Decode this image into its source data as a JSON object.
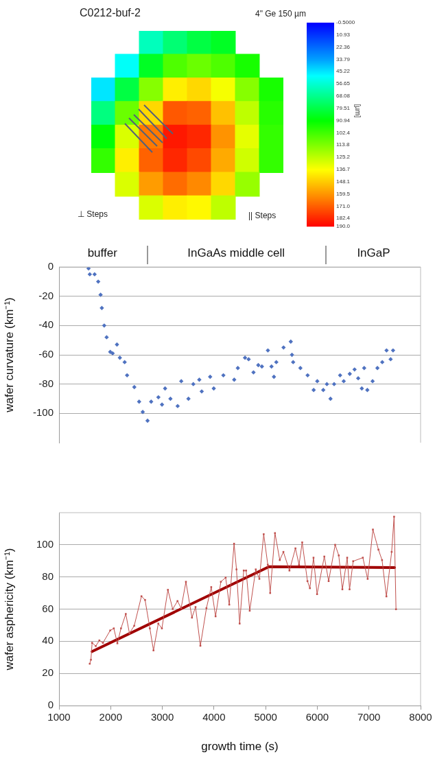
{
  "chart_data": [
    {
      "type": "heatmap",
      "title": "C0212-buf-2",
      "subtitle": "4\" Ge 150 µm",
      "clabel": "[µm]",
      "annotations": [
        "⊥ Steps",
        "|| Steps"
      ],
      "tick_labels": false,
      "categories": [
        null,
        null,
        null,
        null,
        null,
        null,
        null,
        null
      ],
      "y_categories": [
        null,
        null,
        null,
        null,
        null,
        null,
        null,
        null
      ],
      "cells": [
        [
          null,
          null,
          60,
          72,
          80,
          85,
          null,
          null
        ],
        [
          null,
          50,
          85,
          105,
          110,
          105,
          95,
          null
        ],
        [
          45,
          80,
          115,
          140,
          145,
          135,
          115,
          95
        ],
        [
          70,
          110,
          145,
          172,
          170,
          150,
          125,
          98
        ],
        [
          90,
          130,
          165,
          185,
          182,
          160,
          132,
          100
        ],
        [
          100,
          140,
          170,
          182,
          175,
          155,
          128,
          100
        ],
        [
          null,
          130,
          158,
          168,
          162,
          145,
          118,
          null
        ],
        [
          null,
          null,
          130,
          140,
          138,
          125,
          null,
          null
        ]
      ],
      "clim": [
        -0.5,
        190
      ],
      "cticks": [
        {
          "value": -0.5,
          "label": "-0.5000"
        },
        10.93,
        22.36,
        33.79,
        45.22,
        56.65,
        68.08,
        79.51,
        90.94,
        102.4,
        113.8,
        125.2,
        136.7,
        148.1,
        159.5,
        {
          "value": 171,
          "label": "171.0"
        },
        182.4,
        {
          "value": 190,
          "label": "190.0"
        }
      ]
    },
    {
      "type": "scatter",
      "ylabel": "wafer curvature (km⁻¹)",
      "xlim": [
        1000,
        8000
      ],
      "ylim": [
        -120,
        0
      ],
      "yticks": [
        0,
        -20,
        -40,
        -60,
        -80,
        -100
      ],
      "tick_labels": "y",
      "grid": "y",
      "marker": "diamond",
      "annotations": [
        "buffer",
        "InGaAs middle cell",
        "InGaP"
      ],
      "series": [
        {
          "color": "#4f72c0",
          "x": [
            1572,
            1596,
            1689,
            1759,
            1805,
            1829,
            1875,
            1922,
            1992,
            2038,
            2122,
            2178,
            2271,
            2318,
            2458,
            2551,
            2621,
            2714,
            2784,
            2924,
            2994,
            3054,
            3157,
            3297,
            3367,
            3506,
            3600,
            3716,
            3763,
            3926,
            3996,
            4182,
            4392,
            4462,
            4601,
            4671,
            4765,
            4858,
            4928,
            5044,
            5114,
            5161,
            5207,
            5347,
            5487,
            5510,
            5533,
            5673,
            5813,
            5930,
            6000,
            6116,
            6186,
            6256,
            6326,
            6442,
            6512,
            6629,
            6722,
            6792,
            6862,
            6908,
            6969,
            7071,
            7164,
            7258,
            7341,
            7420,
            7467
          ],
          "values": [
            -1,
            -5,
            -5,
            -10,
            -19,
            -28,
            -40,
            -48,
            -58,
            -59,
            -53,
            -62,
            -65,
            -74,
            -82,
            -92,
            -99,
            -105,
            -92,
            -89,
            -94,
            -83,
            -90,
            -95,
            -78,
            -90,
            -80,
            -77,
            -85,
            -75,
            -83,
            -74,
            -77,
            -69,
            -62,
            -63,
            -72,
            -67,
            -68,
            -57,
            -68,
            -75,
            -65,
            -55,
            -51,
            -60,
            -65,
            -69,
            -74,
            -84,
            -78,
            -84,
            -80,
            -90,
            -80,
            -74,
            -78,
            -73,
            -70,
            -76,
            -83,
            -69,
            -84,
            -78,
            -69,
            -65,
            -57,
            -63,
            -57
          ]
        }
      ]
    },
    {
      "type": "line",
      "xlabel": "growth time (s)",
      "ylabel": "wafer asphericity (km⁻¹)",
      "xlim": [
        1000,
        8000
      ],
      "xticks": [
        1000,
        2000,
        3000,
        4000,
        5000,
        6000,
        7000,
        8000
      ],
      "ylim": [
        0,
        120
      ],
      "yticks": [
        0,
        20,
        40,
        60,
        80,
        100
      ],
      "grid": "y",
      "series": [
        {
          "color": "#c0504d",
          "marker": "square",
          "x": [
            1595,
            1618,
            1641,
            1711,
            1781,
            1851,
            1991,
            2061,
            2130,
            2200,
            2293,
            2363,
            2456,
            2596,
            2666,
            2759,
            2829,
            2922,
            2992,
            3108,
            3201,
            3294,
            3364,
            3457,
            3574,
            3643,
            3737,
            3854,
            3947,
            4031,
            4133,
            4226,
            4296,
            4389,
            4436,
            4497,
            4576,
            4622,
            4692,
            4809,
            4879,
            4963,
            5042,
            5088,
            5181,
            5274,
            5344,
            5461,
            5577,
            5647,
            5708,
            5810,
            5857,
            5927,
            5996,
            6136,
            6220,
            6346,
            6416,
            6486,
            6579,
            6625,
            6695,
            6882,
            6975,
            7077,
            7184,
            7254,
            7338,
            7440,
            7487,
            7524
          ],
          "values": [
            26,
            28.5,
            39,
            37,
            40.5,
            39,
            46.7,
            48,
            38.7,
            48,
            57,
            45,
            49.6,
            68,
            65.7,
            48,
            34.3,
            51,
            48,
            72,
            60,
            65,
            60.6,
            77,
            54.7,
            61.3,
            37.2,
            60.6,
            73.7,
            55.5,
            77,
            79.6,
            62.8,
            100.7,
            84.7,
            51,
            84,
            84,
            59,
            84.7,
            78.8,
            106.6,
            87.6,
            70,
            107.3,
            90.5,
            95.6,
            84,
            97.8,
            87.6,
            101.5,
            77.4,
            73,
            92,
            69.3,
            92.7,
            77.4,
            100,
            93.4,
            72.3,
            92,
            72.3,
            89.8,
            92,
            78.8,
            109.5,
            97,
            90.5,
            67.9,
            95.6,
            117.5,
            59.9
          ]
        },
        {
          "color": "#a00000",
          "marker": "none",
          "x": [
            1641,
            5065,
            7496
          ],
          "values": [
            33.6,
            86.4,
            85.8
          ]
        }
      ]
    }
  ]
}
